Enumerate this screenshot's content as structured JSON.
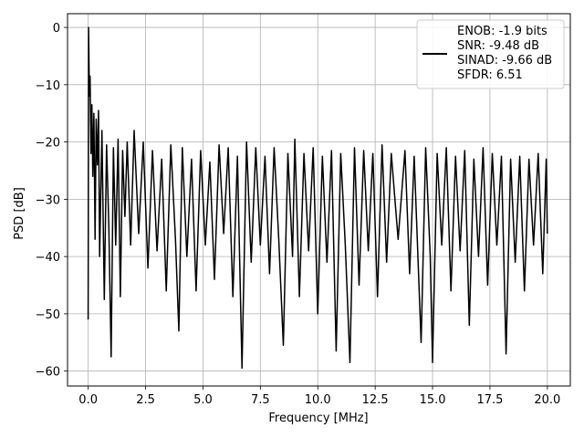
{
  "chart_data": {
    "type": "line",
    "title": "",
    "xlabel": "Frequency [MHz]",
    "ylabel": "PSD [dB]",
    "xlim": [
      -0.9,
      21.0
    ],
    "ylim": [
      -62.6,
      2.4
    ],
    "x_ticks": [
      0.0,
      2.5,
      5.0,
      7.5,
      10.0,
      12.5,
      15.0,
      17.5,
      20.0
    ],
    "x_tick_labels": [
      "0.0",
      "2.5",
      "5.0",
      "7.5",
      "10.0",
      "12.5",
      "15.0",
      "17.5",
      "20.0"
    ],
    "y_ticks": [
      0,
      -10,
      -20,
      -30,
      -40,
      -50,
      -60
    ],
    "y_tick_labels": [
      "0",
      "−10",
      "−20",
      "−30",
      "−40",
      "−50",
      "−60"
    ],
    "grid": true,
    "legend_position": "top-right",
    "series": [
      {
        "color": "#000000",
        "description": "Noisy PSD spectrum; peak 0 dB at ~0 MHz, noise floor mostly between -20 and -40 dB",
        "points": [
          [
            0.0,
            -51.0
          ],
          [
            0.02,
            0.0
          ],
          [
            0.05,
            -12.0
          ],
          [
            0.08,
            -8.5
          ],
          [
            0.12,
            -22.0
          ],
          [
            0.16,
            -13.5
          ],
          [
            0.2,
            -26.0
          ],
          [
            0.25,
            -15.0
          ],
          [
            0.3,
            -37.0
          ],
          [
            0.35,
            -16.0
          ],
          [
            0.4,
            -24.0
          ],
          [
            0.45,
            -14.5
          ],
          [
            0.5,
            -40.0
          ],
          [
            0.6,
            -18.0
          ],
          [
            0.7,
            -47.5
          ],
          [
            0.8,
            -20.5
          ],
          [
            0.9,
            -35.0
          ],
          [
            1.0,
            -57.5
          ],
          [
            1.1,
            -21.0
          ],
          [
            1.2,
            -38.0
          ],
          [
            1.3,
            -19.5
          ],
          [
            1.4,
            -47.0
          ],
          [
            1.5,
            -21.5
          ],
          [
            1.6,
            -33.0
          ],
          [
            1.7,
            -20.0
          ],
          [
            1.85,
            -38.0
          ],
          [
            2.0,
            -18.0
          ],
          [
            2.2,
            -36.0
          ],
          [
            2.4,
            -20.0
          ],
          [
            2.6,
            -42.0
          ],
          [
            2.8,
            -21.5
          ],
          [
            3.0,
            -39.0
          ],
          [
            3.2,
            -23.0
          ],
          [
            3.4,
            -46.0
          ],
          [
            3.6,
            -20.5
          ],
          [
            3.8,
            -37.0
          ],
          [
            3.95,
            -53.0
          ],
          [
            4.1,
            -21.0
          ],
          [
            4.3,
            -40.0
          ],
          [
            4.5,
            -23.0
          ],
          [
            4.7,
            -46.0
          ],
          [
            4.9,
            -21.5
          ],
          [
            5.1,
            -38.0
          ],
          [
            5.3,
            -23.5
          ],
          [
            5.5,
            -44.0
          ],
          [
            5.7,
            -20.5
          ],
          [
            5.9,
            -36.0
          ],
          [
            6.1,
            -21.0
          ],
          [
            6.3,
            -47.0
          ],
          [
            6.5,
            -22.5
          ],
          [
            6.7,
            -59.5
          ],
          [
            6.9,
            -20.0
          ],
          [
            7.1,
            -41.0
          ],
          [
            7.3,
            -21.0
          ],
          [
            7.5,
            -38.0
          ],
          [
            7.7,
            -22.5
          ],
          [
            7.9,
            -43.0
          ],
          [
            8.1,
            -21.0
          ],
          [
            8.3,
            -37.0
          ],
          [
            8.5,
            -55.5
          ],
          [
            8.7,
            -22.0
          ],
          [
            8.9,
            -40.0
          ],
          [
            9.0,
            -19.5
          ],
          [
            9.2,
            -47.0
          ],
          [
            9.4,
            -22.0
          ],
          [
            9.6,
            -39.0
          ],
          [
            9.8,
            -21.0
          ],
          [
            10.0,
            -50.0
          ],
          [
            10.2,
            -22.5
          ],
          [
            10.4,
            -41.0
          ],
          [
            10.6,
            -21.5
          ],
          [
            10.8,
            -56.5
          ],
          [
            11.0,
            -22.0
          ],
          [
            11.2,
            -38.0
          ],
          [
            11.4,
            -58.5
          ],
          [
            11.6,
            -21.0
          ],
          [
            11.8,
            -45.0
          ],
          [
            12.0,
            -21.5
          ],
          [
            12.2,
            -39.0
          ],
          [
            12.4,
            -22.0
          ],
          [
            12.6,
            -47.0
          ],
          [
            12.8,
            -20.5
          ],
          [
            13.0,
            -41.0
          ],
          [
            13.2,
            -22.0
          ],
          [
            13.5,
            -37.0
          ],
          [
            13.8,
            -21.5
          ],
          [
            14.0,
            -43.0
          ],
          [
            14.2,
            -22.5
          ],
          [
            14.5,
            -55.0
          ],
          [
            14.7,
            -21.0
          ],
          [
            14.9,
            -40.0
          ],
          [
            15.0,
            -58.5
          ],
          [
            15.2,
            -22.0
          ],
          [
            15.4,
            -38.0
          ],
          [
            15.6,
            -21.0
          ],
          [
            15.8,
            -46.0
          ],
          [
            16.0,
            -22.5
          ],
          [
            16.2,
            -39.0
          ],
          [
            16.4,
            -21.5
          ],
          [
            16.6,
            -52.0
          ],
          [
            16.8,
            -23.0
          ],
          [
            17.0,
            -40.0
          ],
          [
            17.2,
            -21.0
          ],
          [
            17.4,
            -45.0
          ],
          [
            17.6,
            -22.0
          ],
          [
            17.8,
            -38.0
          ],
          [
            18.0,
            -22.5
          ],
          [
            18.2,
            -57.0
          ],
          [
            18.4,
            -23.0
          ],
          [
            18.6,
            -41.0
          ],
          [
            18.8,
            -22.5
          ],
          [
            19.0,
            -46.0
          ],
          [
            19.2,
            -23.0
          ],
          [
            19.4,
            -38.0
          ],
          [
            19.6,
            -22.0
          ],
          [
            19.8,
            -43.0
          ],
          [
            19.95,
            -23.0
          ],
          [
            20.0,
            -36.0
          ]
        ]
      }
    ],
    "legend": {
      "entries": [
        "ENOB: -1.9 bits",
        "SNR: -9.48 dB",
        "SINAD: -9.66 dB",
        "SFDR: 6.51"
      ]
    }
  }
}
